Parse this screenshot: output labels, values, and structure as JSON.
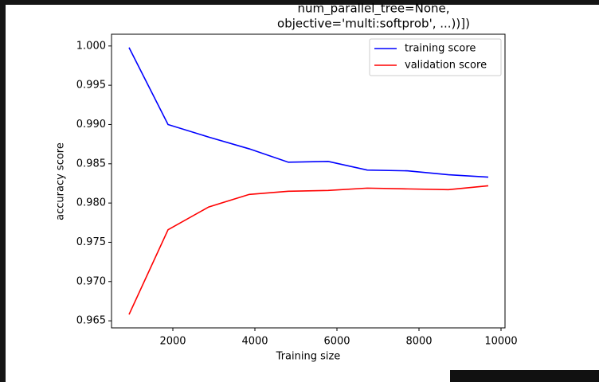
{
  "chart_data": {
    "type": "line",
    "title": [
      "num_parallel_tree=None,",
      "objective='multi:softprob', ...))])"
    ],
    "x_label": "Training size",
    "y_label": "accuracy score",
    "x": [
      932,
      1883,
      2874,
      3864,
      4816,
      5786,
      6738,
      7728,
      8718,
      9689
    ],
    "series": [
      {
        "name": "training score",
        "color": "#0000ff",
        "values": [
          0.9998,
          0.99,
          0.9884,
          0.9869,
          0.9852,
          0.9853,
          0.9842,
          0.9841,
          0.9836,
          0.9833
        ]
      },
      {
        "name": "validation score",
        "color": "#ff0000",
        "values": [
          0.9658,
          0.9766,
          0.9795,
          0.9811,
          0.9815,
          0.9816,
          0.9819,
          0.9818,
          0.9817,
          0.9822
        ]
      }
    ],
    "xlim": [
      505,
      10097
    ],
    "ylim": [
      0.9641,
      1.0015
    ],
    "xticks": [
      2000,
      4000,
      6000,
      8000,
      10000
    ],
    "yticks": [
      0.965,
      {
        "value": 0.97,
        "label": "0.970"
      },
      0.975,
      {
        "value": 0.98,
        "label": "0.980"
      },
      0.985,
      {
        "value": 0.99,
        "label": "0.990"
      },
      0.995,
      {
        "value": 1.0,
        "label": "1.000"
      }
    ],
    "legend": "upper right",
    "grid": false
  }
}
